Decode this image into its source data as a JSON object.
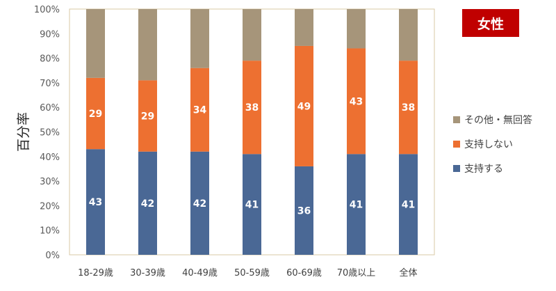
{
  "badge": {
    "label": "女性",
    "color": "#c00000"
  },
  "chart_data": {
    "type": "bar",
    "stacked": true,
    "ylabel": "百分率",
    "ylim": [
      0,
      100
    ],
    "yticks": [
      "0%",
      "10%",
      "20%",
      "30%",
      "40%",
      "50%",
      "60%",
      "70%",
      "80%",
      "90%",
      "100%"
    ],
    "categories": [
      "18-29歳",
      "30-39歳",
      "40-49歳",
      "50-59歳",
      "60-69歳",
      "70歳以上",
      "全体"
    ],
    "series": [
      {
        "name": "支持する",
        "color": "#4a6895",
        "values": [
          43,
          42,
          42,
          41,
          36,
          41,
          41
        ],
        "labels": [
          "43",
          "42",
          "42",
          "41",
          "36",
          "41",
          "41"
        ]
      },
      {
        "name": "支持しない",
        "color": "#ed7031",
        "values": [
          29,
          29,
          34,
          38,
          49,
          43,
          38
        ],
        "labels": [
          "29",
          "29",
          "34",
          "38",
          "49",
          "43",
          "38"
        ]
      },
      {
        "name": "その他・無回答",
        "color": "#a6957a",
        "values": [
          28,
          29,
          24,
          21,
          15,
          16,
          21
        ],
        "labels": []
      }
    ],
    "legend": {
      "position": "right",
      "order": [
        "その他・無回答",
        "支持しない",
        "支持する"
      ]
    },
    "grid": false,
    "frame_color": "#d9c8a6"
  }
}
